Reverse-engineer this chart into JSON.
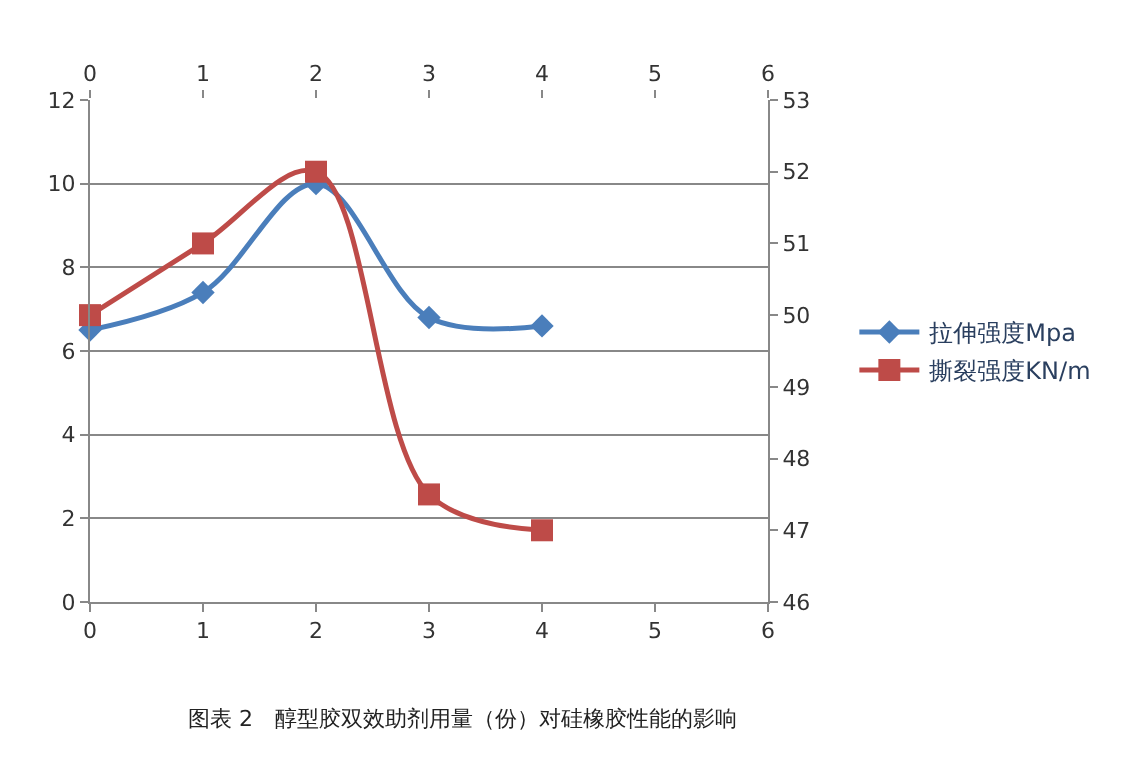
{
  "chart_data": {
    "type": "line",
    "x": [
      0,
      1,
      2,
      3,
      4
    ],
    "series": [
      {
        "name": "拉伸强度Mpa",
        "color": "#4a7ebb",
        "values": [
          6.5,
          7.4,
          10.0,
          6.8,
          6.6
        ],
        "marker": "diamond"
      },
      {
        "name": "撕裂强度KN/m",
        "color": "#be4b48",
        "values": [
          50,
          51,
          52,
          47.5,
          47
        ],
        "marker": "square",
        "axis": "y2"
      }
    ],
    "xlim": [
      0,
      6
    ],
    "xticks": [
      0,
      1,
      2,
      3,
      4,
      5,
      6
    ],
    "x2lim": [
      0,
      6
    ],
    "x2ticks": [
      0,
      1,
      2,
      3,
      4,
      5,
      6
    ],
    "ylim": [
      0,
      12
    ],
    "yticks": [
      0,
      2,
      4,
      6,
      8,
      10,
      12
    ],
    "y2lim": [
      46,
      53
    ],
    "y2ticks": [
      46,
      47,
      48,
      49,
      50,
      51,
      52,
      53
    ],
    "grid": "y",
    "legend": "right",
    "line_style": "solid",
    "annotations": [
      "图表 2　醇型胶双效助剂用量（份）对硅橡胶性能的影响"
    ]
  }
}
